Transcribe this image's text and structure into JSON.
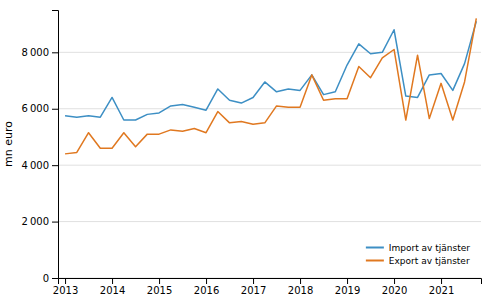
{
  "chart_data": {
    "type": "line",
    "ylabel": "mn euro",
    "x": [
      2013,
      2013.25,
      2013.5,
      2013.75,
      2014,
      2014.25,
      2014.5,
      2014.75,
      2015,
      2015.25,
      2015.5,
      2015.75,
      2016,
      2016.25,
      2016.5,
      2016.75,
      2017,
      2017.25,
      2017.5,
      2017.75,
      2018,
      2018.25,
      2018.5,
      2018.75,
      2019,
      2019.25,
      2019.5,
      2019.75,
      2020,
      2020.25,
      2020.5,
      2020.75,
      2021,
      2021.25,
      2021.5,
      2021.75
    ],
    "series": [
      {
        "name": "Import av tjänster",
        "color": "#3d8fc4",
        "values": [
          5750,
          5700,
          5750,
          5700,
          6400,
          5600,
          5600,
          5800,
          5850,
          6100,
          6150,
          6050,
          5950,
          6700,
          6300,
          6200,
          6400,
          6950,
          6600,
          6700,
          6650,
          7200,
          6500,
          6600,
          7550,
          8300,
          7950,
          8000,
          8800,
          6450,
          6400,
          7200,
          7250,
          6650,
          7600,
          9100
        ]
      },
      {
        "name": "Export av tjänster",
        "color": "#e07820",
        "values": [
          4400,
          4450,
          5150,
          4600,
          4600,
          5150,
          4650,
          5100,
          5100,
          5250,
          5200,
          5300,
          5150,
          5900,
          5500,
          5550,
          5450,
          5500,
          6100,
          6050,
          6050,
          7200,
          6300,
          6350,
          6350,
          7500,
          7100,
          7800,
          8100,
          5600,
          7900,
          5650,
          6900,
          5600,
          6950,
          9200
        ]
      }
    ],
    "xlim": [
      2012.85,
      2021.85
    ],
    "xticks": [
      2013,
      2014,
      2015,
      2016,
      2017,
      2018,
      2019,
      2020,
      2021
    ],
    "ylim": [
      0,
      9500
    ],
    "yticks": [
      0,
      {
        "value": 2000,
        "label": "2 000"
      },
      {
        "value": 4000,
        "label": "4 000"
      },
      {
        "value": 6000,
        "label": "6 000"
      },
      {
        "value": 8000,
        "label": "8 000"
      }
    ],
    "grid": true,
    "legend": "lower right"
  }
}
